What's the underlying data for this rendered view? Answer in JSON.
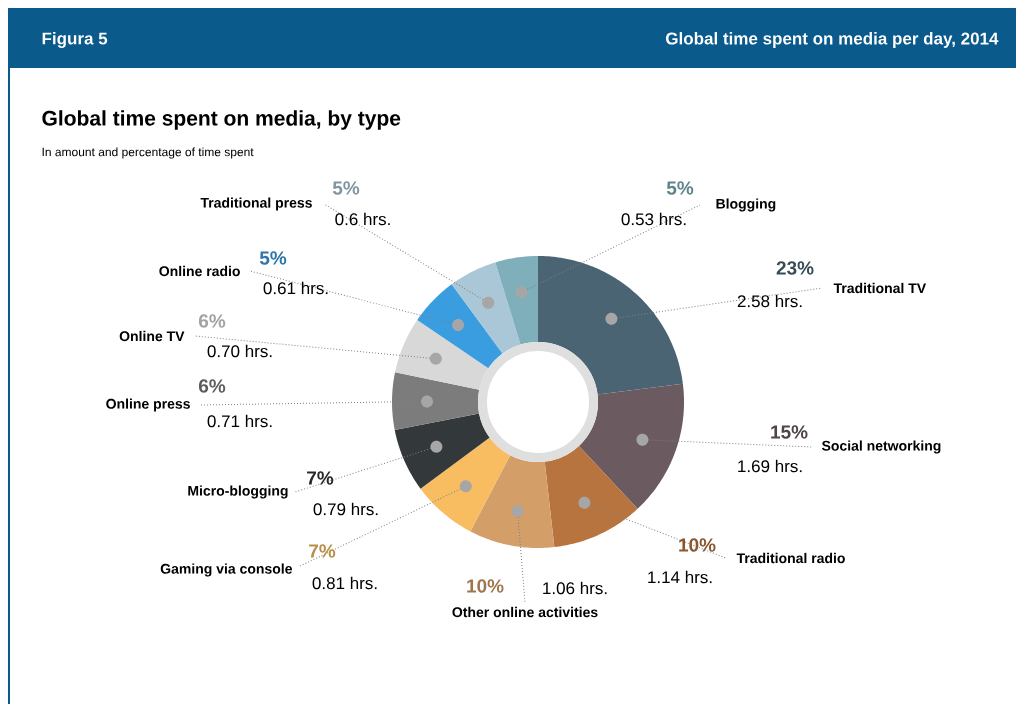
{
  "chart_data": {
    "type": "donut",
    "title": "Global time spent on media, by type",
    "subtitle": "In amount and percentage of time spent",
    "categories": [
      "Traditional TV",
      "Social networking",
      "Traditional radio",
      "Other online activities",
      "Gaming via console",
      "Micro-blogging",
      "Online press",
      "Online TV",
      "Online radio",
      "Traditional press",
      "Blogging"
    ],
    "values": [
      2.58,
      1.69,
      1.14,
      1.06,
      0.81,
      0.79,
      0.71,
      0.7,
      0.61,
      0.6,
      0.53
    ],
    "value_labels": [
      "2.58 hrs.",
      "1.69 hrs.",
      "1.14 hrs.",
      "1.06 hrs.",
      "0.81 hrs.",
      "0.79 hrs.",
      "0.71 hrs.",
      "0.70 hrs.",
      "0.61 hrs.",
      "0.6 hrs.",
      "0.53 hrs."
    ],
    "colors": [
      "#4a6474",
      "#6b5a60",
      "#b8743f",
      "#d49e68",
      "#f7bd60",
      "#33383b",
      "#7c7c7c",
      "#d8d8d8",
      "#3a9de0",
      "#a9c7d6",
      "#7eafba"
    ],
    "annotations": [
      {
        "text": "23%",
        "x": "Traditional TV"
      },
      {
        "text": "15%",
        "x": "Social networking"
      },
      {
        "text": "10%",
        "x": "Traditional radio"
      },
      {
        "text": "10%",
        "x": "Other online activities"
      },
      {
        "text": "7%",
        "x": "Gaming via console"
      },
      {
        "text": "7%",
        "x": "Micro-blogging"
      },
      {
        "text": "6%",
        "x": "Online press"
      },
      {
        "text": "6%",
        "x": "Online TV"
      },
      {
        "text": "5%",
        "x": "Online radio"
      },
      {
        "text": "5%",
        "x": "Traditional press"
      },
      {
        "text": "5%",
        "x": "Blogging"
      },
      "Figura 5",
      "Global time spent on media per day, 2014"
    ]
  }
}
